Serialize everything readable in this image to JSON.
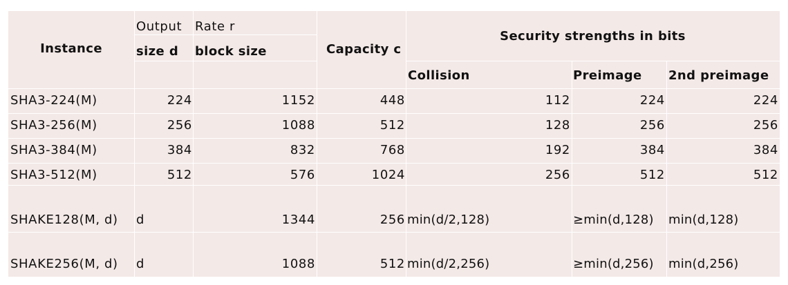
{
  "header": {
    "instance": "Instance",
    "output_line1": "Output",
    "output_line2": "size d",
    "rate_line1": "Rate r",
    "rate_line2": "block size",
    "capacity": "Capacity c",
    "security": "Security strengths in bits",
    "collision": "Collision",
    "preimage": "Preimage",
    "second_preimage": "2nd preimage"
  },
  "rows": [
    {
      "instance": "SHA3-224(M)",
      "output": "224",
      "rate": "1152",
      "capacity": "448",
      "collision": "112",
      "preimage": "224",
      "second_preimage": "224"
    },
    {
      "instance": "SHA3-256(M)",
      "output": "256",
      "rate": "1088",
      "capacity": "512",
      "collision": "128",
      "preimage": "256",
      "second_preimage": "256"
    },
    {
      "instance": "SHA3-384(M)",
      "output": "384",
      "rate": "832",
      "capacity": "768",
      "collision": "192",
      "preimage": "384",
      "second_preimage": "384"
    },
    {
      "instance": "SHA3-512(M)",
      "output": "512",
      "rate": "576",
      "capacity": "1024",
      "collision": "256",
      "preimage": "512",
      "second_preimage": "512"
    },
    {
      "instance": "SHAKE128(M, d)",
      "output": "d",
      "rate": "1344",
      "capacity": "256",
      "collision": "min(d/2,128)",
      "preimage": "≥min(d,128)",
      "second_preimage": "min(d,128)"
    },
    {
      "instance": "SHAKE256(M, d)",
      "output": "d",
      "rate": "1088",
      "capacity": "512",
      "collision": "min(d/2,256)",
      "preimage": "≥min(d,256)",
      "second_preimage": "min(d,256)"
    }
  ],
  "colors": {
    "cell_background": "#f3e9e7",
    "grid_lines": "#ffffff"
  }
}
